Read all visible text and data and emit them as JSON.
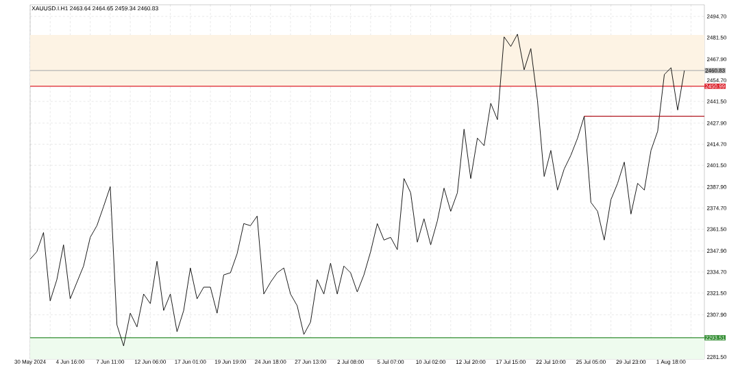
{
  "chart_data": {
    "type": "line",
    "title": "XAUUSD.I.H1  2463.64 2464.65 2459.34 2460.83",
    "ylim": [
      2280.2,
      2502.0
    ],
    "grid": true,
    "line_style": "solid",
    "categories": [
      "30 May 2024",
      null,
      null,
      null,
      null,
      null,
      "4 Jun 16:00",
      null,
      null,
      null,
      null,
      null,
      "7 Jun 11:00",
      null,
      null,
      null,
      null,
      null,
      "12 Jun 06:00",
      null,
      null,
      null,
      null,
      null,
      "17 Jun 01:00",
      null,
      null,
      null,
      null,
      null,
      "19 Jun 19:00",
      null,
      null,
      null,
      null,
      null,
      "24 Jun 18:00",
      null,
      null,
      null,
      null,
      null,
      "27 Jun 13:00",
      null,
      null,
      null,
      null,
      null,
      "2 Jul 08:00",
      null,
      null,
      null,
      null,
      null,
      "5 Jul 07:00",
      null,
      null,
      null,
      null,
      null,
      "10 Jul 02:00",
      null,
      null,
      null,
      null,
      null,
      "12 Jul 20:00",
      null,
      null,
      null,
      null,
      null,
      "17 Jul 15:00",
      null,
      null,
      null,
      null,
      null,
      "22 Jul 10:00",
      null,
      null,
      null,
      null,
      null,
      "25 Jul 05:00",
      null,
      null,
      null,
      null,
      null,
      "29 Jul 23:00",
      null,
      null,
      null,
      null,
      null,
      "1 Aug 18:00",
      null,
      null,
      null,
      null,
      null
    ],
    "yticks": [
      {
        "value": 2494.7,
        "label": "2494.70"
      },
      {
        "value": 2481.5,
        "label": "2481.50"
      },
      {
        "value": 2467.9,
        "label": "2467.90"
      },
      {
        "value": 2454.7,
        "label": "2454.70"
      },
      {
        "value": 2441.5,
        "label": "2441.50"
      },
      {
        "value": 2427.9,
        "label": "2427.90"
      },
      {
        "value": 2414.7,
        "label": "2414.70"
      },
      {
        "value": 2401.5,
        "label": "2401.50"
      },
      {
        "value": 2387.9,
        "label": "2387.90"
      },
      {
        "value": 2374.7,
        "label": "2374.70"
      },
      {
        "value": 2361.5,
        "label": "2361.50"
      },
      {
        "value": 2347.9,
        "label": "2347.90"
      },
      {
        "value": 2334.7,
        "label": "2334.70"
      },
      {
        "value": 2321.5,
        "label": "2321.50"
      },
      {
        "value": 2307.9,
        "label": "2307.90"
      },
      {
        "value": 2281.5,
        "label": "2281.50"
      }
    ],
    "bands": [
      {
        "axis": "y",
        "from": 2450.99,
        "to": 2483.1,
        "color": "#fdf3e4"
      },
      {
        "axis": "y",
        "from": 2280.2,
        "to": 2293.51,
        "color": "#eefbee"
      }
    ],
    "ref_lines": [
      {
        "axis": "y",
        "value": 2460.83,
        "label": "2460.83",
        "color": "#b4b4b4"
      },
      {
        "axis": "y",
        "value": 2450.99,
        "label": "2450.99",
        "color": "#dc1e28"
      },
      {
        "axis": "y",
        "value": 2293.51,
        "label": "2293.51",
        "color": "#2e8b2e"
      }
    ],
    "series": [
      {
        "color": "#000000",
        "values": [
          2342.7,
          2347.4,
          2359.4,
          2316.6,
          2329.9,
          2351.7,
          2317.9,
          2328.2,
          2338.4,
          2356.4,
          2363.7,
          2375.7,
          2388.1,
          2301.6,
          2288.4,
          2308.9,
          2300.3,
          2320.9,
          2314.9,
          2341.4,
          2310.6,
          2320.9,
          2297.3,
          2310.6,
          2337.2,
          2317.9,
          2325.2,
          2325.2,
          2308.9,
          2332.9,
          2334.2,
          2346.1,
          2365.0,
          2363.7,
          2369.7,
          2320.9,
          2328.2,
          2334.2,
          2337.2,
          2320.9,
          2313.6,
          2295.6,
          2303.3,
          2329.9,
          2320.9,
          2340.2,
          2320.9,
          2338.4,
          2334.2,
          2322.2,
          2332.9,
          2347.4,
          2365.0,
          2354.7,
          2356.4,
          2348.7,
          2393.2,
          2384.3,
          2353.4,
          2368.0,
          2351.7,
          2366.7,
          2387.2,
          2372.7,
          2384.3,
          2424.1,
          2393.2,
          2418.5,
          2413.8,
          2440.3,
          2430.1,
          2481.9,
          2475.9,
          2483.6,
          2461.3,
          2474.6,
          2442.0,
          2394.5,
          2410.8,
          2386.0,
          2399.2,
          2407.8,
          2418.5,
          2432.2,
          2378.3,
          2372.7,
          2354.7,
          2380.0,
          2390.2,
          2403.5,
          2371.0,
          2390.2,
          2386.0,
          2410.8,
          2422.8,
          2458.3,
          2462.6,
          2436.1,
          2460.8,
          null,
          null,
          null
        ]
      },
      {
        "color": "#b0141e",
        "values": [
          null,
          null,
          null,
          null,
          null,
          null,
          null,
          null,
          null,
          null,
          null,
          null,
          null,
          null,
          null,
          null,
          null,
          null,
          null,
          null,
          null,
          null,
          null,
          null,
          null,
          null,
          null,
          null,
          null,
          null,
          null,
          null,
          null,
          null,
          null,
          null,
          null,
          null,
          null,
          null,
          null,
          null,
          null,
          null,
          null,
          null,
          null,
          null,
          null,
          null,
          null,
          null,
          null,
          null,
          null,
          null,
          null,
          null,
          null,
          null,
          null,
          null,
          null,
          null,
          null,
          null,
          null,
          null,
          null,
          null,
          null,
          null,
          null,
          null,
          null,
          null,
          null,
          null,
          null,
          null,
          null,
          null,
          null,
          2432.2,
          2432.2,
          2432.2,
          2432.2,
          2432.2,
          2432.2,
          2432.2,
          2432.2,
          2432.2,
          2432.2,
          2432.2,
          2432.2,
          2432.2,
          2432.2,
          2432.2,
          2432.2,
          2432.2,
          2432.2,
          2432.2
        ]
      }
    ]
  }
}
